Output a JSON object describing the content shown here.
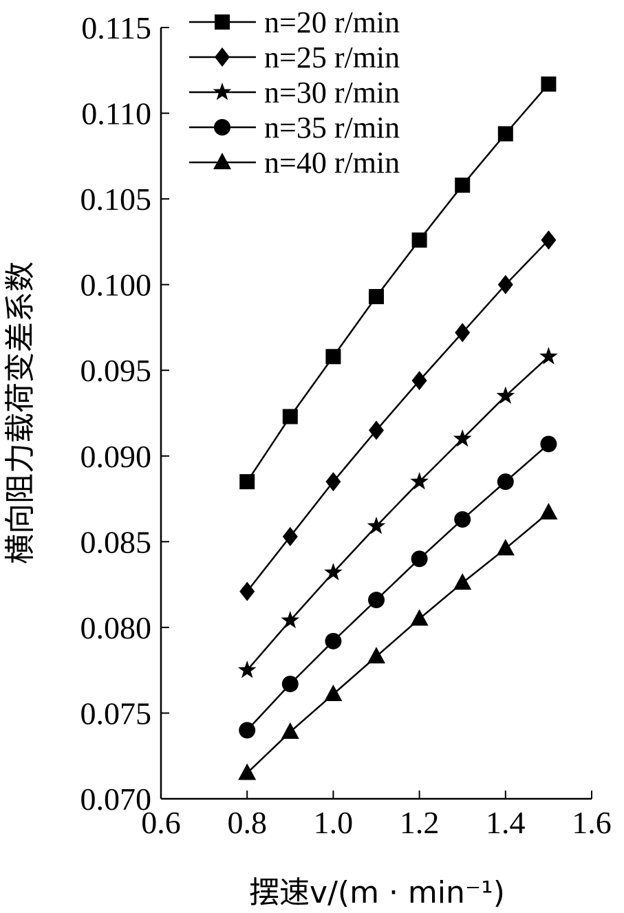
{
  "chart_data": {
    "type": "line",
    "xlabel": "摆速v/(m · min⁻¹)",
    "ylabel": "横向阻力载荷变差系数",
    "xlim": [
      0.6,
      1.6
    ],
    "ylim": [
      0.07,
      0.115
    ],
    "x_ticks": [
      "0.6",
      "0.8",
      "1.0",
      "1.2",
      "1.4",
      "1.6"
    ],
    "y_ticks": [
      "0.070",
      "0.075",
      "0.080",
      "0.085",
      "0.090",
      "0.095",
      "0.100",
      "0.105",
      "0.110",
      "0.115"
    ],
    "grid": false,
    "legend_position": "top-left",
    "x": [
      0.8,
      0.9,
      1.0,
      1.1,
      1.2,
      1.3,
      1.4,
      1.5
    ],
    "series": [
      {
        "name": "n=20 r/min",
        "marker": "square",
        "values": [
          0.0885,
          0.0923,
          0.0958,
          0.0993,
          0.1026,
          0.1058,
          0.1088,
          0.1117
        ]
      },
      {
        "name": "n=25 r/min",
        "marker": "diamond",
        "values": [
          0.0821,
          0.0853,
          0.0885,
          0.0915,
          0.0944,
          0.0972,
          0.1,
          0.1026
        ]
      },
      {
        "name": "n=30 r/min",
        "marker": "star",
        "values": [
          0.0775,
          0.0804,
          0.0832,
          0.0859,
          0.0885,
          0.091,
          0.0935,
          0.0958
        ]
      },
      {
        "name": "n=35 r/min",
        "marker": "circle",
        "values": [
          0.074,
          0.0767,
          0.0792,
          0.0816,
          0.084,
          0.0863,
          0.0885,
          0.0907
        ]
      },
      {
        "name": "n=40 r/min",
        "marker": "triangle",
        "values": [
          0.0715,
          0.0739,
          0.0761,
          0.0783,
          0.0805,
          0.0826,
          0.0846,
          0.0867
        ]
      }
    ]
  }
}
